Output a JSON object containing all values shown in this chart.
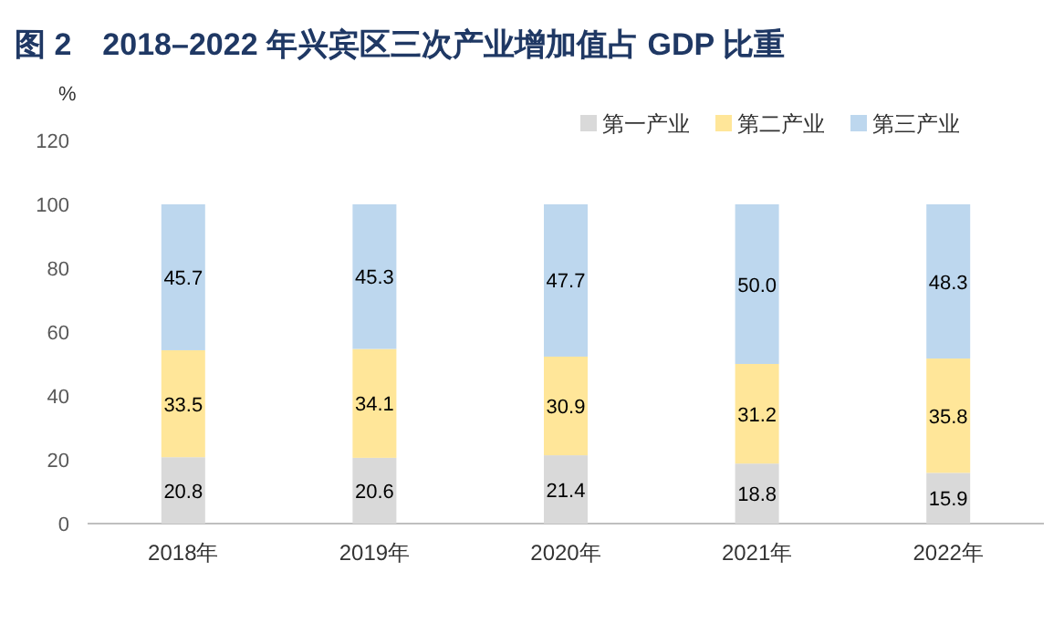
{
  "chart_data": {
    "type": "bar",
    "title": "图 2　2018–2022 年兴宾区三次产业增加值占 GDP 比重",
    "ylabel": "%",
    "categories": [
      "2018年",
      "2019年",
      "2020年",
      "2021年",
      "2022年"
    ],
    "stacked": true,
    "data_labels": true,
    "legend": "top right",
    "grid": false,
    "ylim": [
      0,
      120
    ],
    "yticks": [
      0,
      20,
      40,
      60,
      80,
      100,
      120
    ],
    "series": [
      {
        "name": "第一产业",
        "color": "#d9d9d9",
        "values": [
          20.8,
          20.6,
          21.4,
          18.8,
          15.9
        ]
      },
      {
        "name": "第二产业",
        "color": "#ffe699",
        "values": [
          33.5,
          34.1,
          30.9,
          31.2,
          35.8
        ]
      },
      {
        "name": "第三产业",
        "color": "#bdd7ee",
        "values": [
          45.7,
          45.3,
          47.7,
          50.0,
          48.3
        ],
        "value_labels": [
          "45.7",
          "45.3",
          "47.7",
          "50.0",
          "48.3"
        ]
      }
    ]
  }
}
